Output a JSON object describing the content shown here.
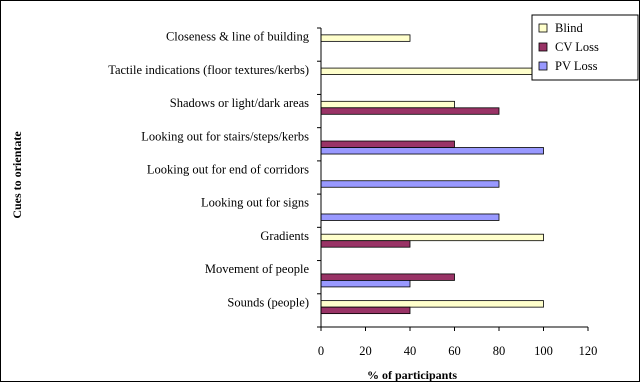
{
  "chart_data": {
    "type": "bar",
    "orientation": "horizontal",
    "ylabel": "Cues to orientate",
    "xlabel": "% of participants",
    "xlim": [
      0,
      120
    ],
    "xticks": [
      0,
      20,
      40,
      60,
      80,
      100,
      120
    ],
    "grid": false,
    "legend_position": "top-right",
    "categories": [
      "Closeness & line of building",
      "Tactile indications (floor textures/kerbs)",
      "Shadows or light/dark areas",
      "Looking out for stairs/steps/kerbs",
      "Looking out for end of corridors",
      "Looking out for signs",
      "Gradients",
      "Movement of people",
      "Sounds (people)"
    ],
    "series": [
      {
        "name": "Blind",
        "color": "#ffffcc",
        "values": [
          40,
          100,
          60,
          0,
          0,
          0,
          100,
          0,
          100
        ]
      },
      {
        "name": "CV Loss",
        "color": "#993366",
        "values": [
          0,
          0,
          80,
          60,
          0,
          0,
          40,
          60,
          40
        ]
      },
      {
        "name": "PV Loss",
        "color": "#9999ff",
        "values": [
          0,
          0,
          0,
          100,
          80,
          80,
          0,
          40,
          0
        ]
      }
    ]
  }
}
